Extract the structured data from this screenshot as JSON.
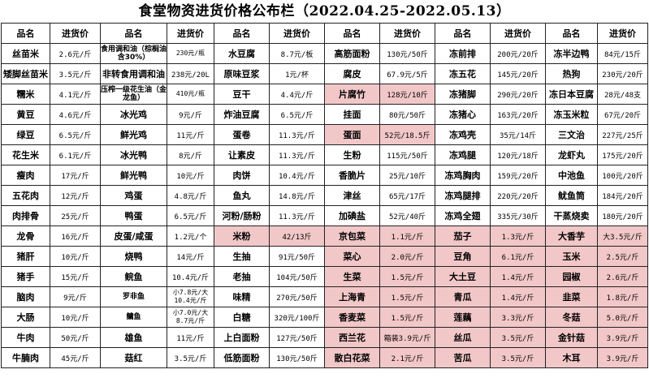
{
  "title": "食堂物资进货价格公布栏（2022.04.25-2022.05.13）",
  "header": [
    "品名",
    "进货价",
    "品名",
    "进货价",
    "品名",
    "进货价",
    "品名",
    "进货价",
    "品名",
    "进货价",
    "品名",
    "进货价"
  ],
  "highlight_color": "#f2c7c8",
  "rows": [
    [
      {
        "n": "丝苗米",
        "p": "2.6元/斤"
      },
      {
        "n": "食用调和油（棕榈油含30%）",
        "p": "230元/瓶",
        "small": true
      },
      {
        "n": "水豆腐",
        "p": "8.7元/板"
      },
      {
        "n": "高筋面粉",
        "p": "130元/50斤"
      },
      {
        "n": "冻前排",
        "p": "200元/20斤"
      },
      {
        "n": "冻半边鸭",
        "p": "84元/15斤"
      }
    ],
    [
      {
        "n": "矮脚丝苗米",
        "p": "3.5元/斤"
      },
      {
        "n": "非转食用调和油",
        "p": "238元/20L"
      },
      {
        "n": "原味豆浆",
        "p": "1元/杯"
      },
      {
        "n": "腐皮",
        "p": "67.9元/5斤"
      },
      {
        "n": "冻五花",
        "p": "145元/20斤"
      },
      {
        "n": "热狗",
        "p": "230元/20斤"
      }
    ],
    [
      {
        "n": "糯米",
        "p": "4.1元/斤"
      },
      {
        "n": "压榨一级花生油（金龙鱼）",
        "p": "410元/瓶",
        "small": true
      },
      {
        "n": "豆干",
        "p": "4.4元/斤"
      },
      {
        "n": "片腐竹",
        "p": "128元/10斤",
        "hl": true
      },
      {
        "n": "冻猪脚",
        "p": "290元/20斤"
      },
      {
        "n": "冻日本豆腐",
        "p": "28元/48支"
      }
    ],
    [
      {
        "n": "黄豆",
        "p": "4.6元/斤"
      },
      {
        "n": "冰光鸡",
        "p": "9元/斤"
      },
      {
        "n": "炸油豆腐",
        "p": "6.5元/斤"
      },
      {
        "n": "挂面",
        "p": "80元/50斤"
      },
      {
        "n": "冻猪心",
        "p": "163元/20斤"
      },
      {
        "n": "冻玉米粒",
        "p": "67元/20斤"
      }
    ],
    [
      {
        "n": "绿豆",
        "p": "6.5元/斤"
      },
      {
        "n": "鲜光鸡",
        "p": "11元/斤"
      },
      {
        "n": "蛋卷",
        "p": "11.3元/斤"
      },
      {
        "n": "蛋面",
        "p": "52元/18.5斤",
        "hl": true
      },
      {
        "n": "冻鸡壳",
        "p": "35元/14斤"
      },
      {
        "n": "三文治",
        "p": "227元/25斤"
      }
    ],
    [
      {
        "n": "花生米",
        "p": "6.1元/斤"
      },
      {
        "n": "冰光鸭",
        "p": "8元/斤"
      },
      {
        "n": "让素皮",
        "p": "11.3元/斤"
      },
      {
        "n": "生粉",
        "p": "115元/50斤"
      },
      {
        "n": "冻鸡腿",
        "p": "120元/18斤"
      },
      {
        "n": "龙虾丸",
        "p": "175元/20斤"
      }
    ],
    [
      {
        "n": "瘦肉",
        "p": "17元/斤"
      },
      {
        "n": "鲜光鸭",
        "p": "10元/斤"
      },
      {
        "n": "肉饼",
        "p": "10.4元/斤"
      },
      {
        "n": "香脆片",
        "p": "25元/10斤"
      },
      {
        "n": "冻鸡胸肉",
        "p": "159元/20斤"
      },
      {
        "n": "中池鱼",
        "p": "100元/20斤"
      }
    ],
    [
      {
        "n": "五花肉",
        "p": "12元/斤"
      },
      {
        "n": "鸡蛋",
        "p": "4.8元/斤"
      },
      {
        "n": "鱼丸",
        "p": "14.8元/斤"
      },
      {
        "n": "津丝",
        "p": "65元/17斤"
      },
      {
        "n": "冻鸡腿排",
        "p": "220元/20斤"
      },
      {
        "n": "鱿鱼筒",
        "p": "184元/20斤"
      }
    ],
    [
      {
        "n": "肉排骨",
        "p": "25元/斤"
      },
      {
        "n": "鸭蛋",
        "p": "6.5元/斤"
      },
      {
        "n": "河粉/肠粉",
        "p": "11.3元/斤"
      },
      {
        "n": "加碘盐",
        "p": "52元/40斤"
      },
      {
        "n": "冻鸡全翅",
        "p": "335元/30斤"
      },
      {
        "n": "干蒸烧卖",
        "p": "180元/20斤"
      }
    ],
    [
      {
        "n": "龙骨",
        "p": "16元/斤"
      },
      {
        "n": "皮蛋/咸蛋",
        "p": "1.2元/个"
      },
      {
        "n": "米粉",
        "p": "42/13斤",
        "hl": true
      },
      {
        "n": "京包菜",
        "p": "1.1元/斤",
        "hl": true
      },
      {
        "n": "茄子",
        "p": "1.3元/斤",
        "hl": true
      },
      {
        "n": "大香芋",
        "p": "大3.5元/斤",
        "hl": true
      }
    ],
    [
      {
        "n": "猪肝",
        "p": "10元/斤"
      },
      {
        "n": "烧鸭",
        "p": "14元/斤"
      },
      {
        "n": "生抽",
        "p": "91元/50斤"
      },
      {
        "n": "菜心",
        "p": "2.0元/斤",
        "hl": true
      },
      {
        "n": "豆角",
        "p": "6.1元/斤",
        "hl": true
      },
      {
        "n": "玉米",
        "p": "2.5元/斤",
        "hl": true
      }
    ],
    [
      {
        "n": "猪手",
        "p": "15元/斤"
      },
      {
        "n": "鲩鱼",
        "p": "10.4元/斤"
      },
      {
        "n": "老抽",
        "p": "104元/50斤"
      },
      {
        "n": "生菜",
        "p": "1.5元/斤",
        "hl": true
      },
      {
        "n": "大土豆",
        "p": "1.4元/斤",
        "hl": true
      },
      {
        "n": "园椒",
        "p": "2.6元/斤",
        "hl": true
      }
    ],
    [
      {
        "n": "脑肉",
        "p": "9元/斤"
      },
      {
        "n": "罗非鱼",
        "p": "小7.8元/大10.4元/斤",
        "small": true
      },
      {
        "n": "味精",
        "p": "270元/50斤"
      },
      {
        "n": "上海青",
        "p": "1.5元/斤",
        "hl": true
      },
      {
        "n": "青瓜",
        "p": "1.4元/斤",
        "hl": true
      },
      {
        "n": "韭菜",
        "p": "1.8元/斤",
        "hl": true
      }
    ],
    [
      {
        "n": "大肠",
        "p": "10元/斤"
      },
      {
        "n": "鳙鱼",
        "p": "小7.0元/大8.7元/斤",
        "small": true
      },
      {
        "n": "白糖",
        "p": "320元/100斤"
      },
      {
        "n": "香麦菜",
        "p": "1.5元/斤",
        "hl": true
      },
      {
        "n": "莲藕",
        "p": "3.3元/斤",
        "hl": true
      },
      {
        "n": "冬菇",
        "p": "5.0元/斤",
        "hl": true
      }
    ],
    [
      {
        "n": "牛肉",
        "p": "50元/斤"
      },
      {
        "n": "雄鱼",
        "p": "11元/斤"
      },
      {
        "n": "上白面粉",
        "p": "127元/50斤"
      },
      {
        "n": "西兰花",
        "p": "箱装3.9元/斤",
        "hl": true
      },
      {
        "n": "丝瓜",
        "p": "3.5元/斤",
        "hl": true
      },
      {
        "n": "金针菇",
        "p": "3.9元/斤",
        "hl": true
      }
    ],
    [
      {
        "n": "牛腩肉",
        "p": "45元/斤"
      },
      {
        "n": "菇红",
        "p": "3.5元/斤"
      },
      {
        "n": "低筋面粉",
        "p": "130元/50斤"
      },
      {
        "n": "散白花菜",
        "p": "2.1元/斤",
        "hl": true
      },
      {
        "n": "苦瓜",
        "p": "3.5元/斤",
        "hl": true
      },
      {
        "n": "木耳",
        "p": "3.9元/斤",
        "hl": true
      }
    ]
  ]
}
